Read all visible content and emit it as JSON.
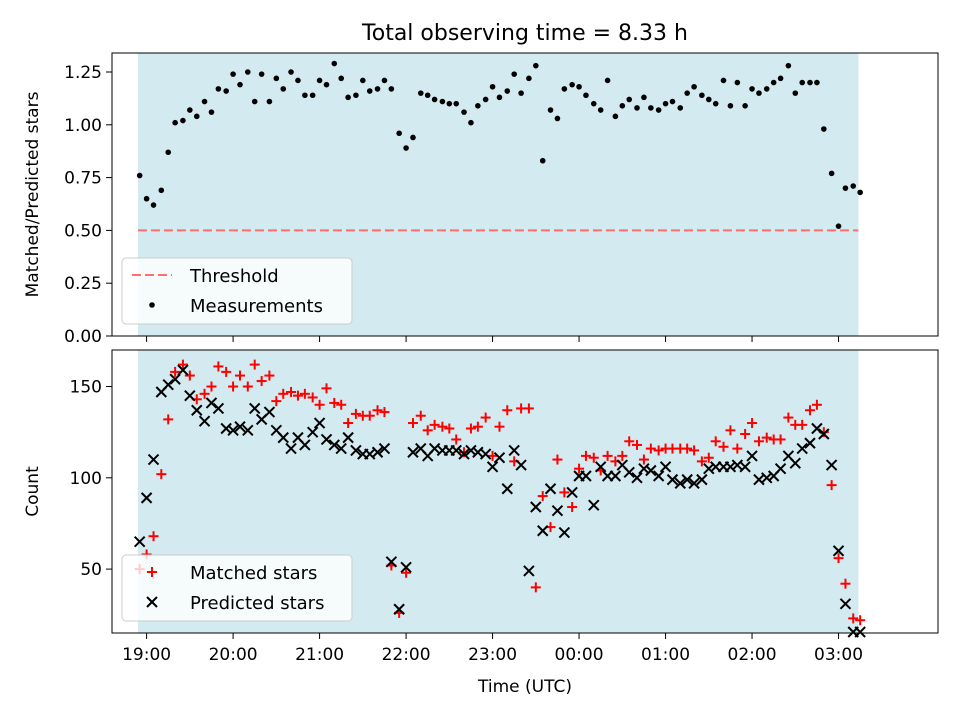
{
  "title": "Total observing time = 8.33 h",
  "colors": {
    "band": "#d3eaf0",
    "threshold": "#ff6e6e",
    "measurement": "#000000",
    "matched": "#ff0000",
    "predicted": "#000000"
  },
  "chart_data": [
    {
      "type": "scatter",
      "panel": "top",
      "ylabel": "Matched/Predicted stars",
      "ylim": [
        0,
        1.34
      ],
      "yticks": [
        0.0,
        0.25,
        0.5,
        0.75,
        1.0,
        1.25
      ],
      "ytick_labels": [
        "0.00",
        "0.25",
        "0.50",
        "0.75",
        "1.00",
        "1.25"
      ],
      "x_unit": "hours since 19:00 UTC",
      "xlim": [
        -0.4,
        9.15
      ],
      "observing_window": [
        -0.1,
        8.23
      ],
      "threshold": {
        "name": "Threshold",
        "value": 0.5,
        "style": "dashed"
      },
      "legend": [
        "Threshold",
        "Measurements"
      ],
      "legend_placement": "lower-left",
      "grid": false,
      "series": [
        {
          "name": "Measurements",
          "marker": "dot",
          "x": [
            -0.08,
            0.0,
            0.08,
            0.17,
            0.25,
            0.33,
            0.42,
            0.5,
            0.58,
            0.67,
            0.75,
            0.83,
            0.92,
            1.0,
            1.08,
            1.17,
            1.25,
            1.33,
            1.42,
            1.5,
            1.58,
            1.67,
            1.75,
            1.83,
            1.92,
            2.0,
            2.08,
            2.17,
            2.25,
            2.33,
            2.42,
            2.5,
            2.58,
            2.67,
            2.75,
            2.83,
            2.92,
            3.0,
            3.08,
            3.17,
            3.25,
            3.33,
            3.42,
            3.5,
            3.58,
            3.67,
            3.75,
            3.83,
            3.92,
            4.0,
            4.08,
            4.17,
            4.25,
            4.33,
            4.42,
            4.5,
            4.58,
            4.67,
            4.75,
            4.83,
            4.92,
            5.0,
            5.08,
            5.17,
            5.25,
            5.33,
            5.42,
            5.5,
            5.58,
            5.67,
            5.75,
            5.83,
            5.92,
            6.0,
            6.08,
            6.17,
            6.25,
            6.33,
            6.42,
            6.5,
            6.58,
            6.67,
            6.75,
            6.83,
            6.92,
            7.0,
            7.08,
            7.17,
            7.25,
            7.33,
            7.42,
            7.5,
            7.58,
            7.67,
            7.75,
            7.83,
            7.92,
            8.0,
            8.08,
            8.17,
            8.25
          ],
          "y": [
            0.76,
            0.65,
            0.62,
            0.69,
            0.87,
            1.01,
            1.02,
            1.07,
            1.04,
            1.11,
            1.06,
            1.17,
            1.16,
            1.24,
            1.19,
            1.25,
            1.11,
            1.24,
            1.11,
            1.22,
            1.17,
            1.25,
            1.21,
            1.14,
            1.14,
            1.21,
            1.19,
            1.29,
            1.22,
            1.13,
            1.14,
            1.21,
            1.16,
            1.17,
            1.21,
            1.17,
            0.96,
            0.89,
            0.94,
            1.15,
            1.14,
            1.12,
            1.11,
            1.1,
            1.1,
            1.06,
            1.01,
            1.09,
            1.12,
            1.18,
            1.13,
            1.16,
            1.24,
            1.15,
            1.22,
            1.28,
            0.83,
            1.07,
            1.03,
            1.17,
            1.19,
            1.18,
            1.14,
            1.1,
            1.07,
            1.21,
            1.04,
            1.09,
            1.12,
            1.08,
            1.13,
            1.08,
            1.07,
            1.1,
            1.11,
            1.08,
            1.15,
            1.18,
            1.14,
            1.12,
            1.1,
            1.21,
            1.09,
            1.2,
            1.09,
            1.17,
            1.15,
            1.17,
            1.2,
            1.22,
            1.28,
            1.15,
            1.2,
            1.2,
            1.2,
            0.98,
            0.77,
            0.52,
            0.7,
            0.71,
            0.68
          ]
        }
      ]
    },
    {
      "type": "scatter",
      "panel": "bottom",
      "xlabel": "Time (UTC)",
      "ylabel": "Count",
      "ylim": [
        15,
        170
      ],
      "yticks": [
        50,
        100,
        150
      ],
      "ytick_labels": [
        "50",
        "100",
        "150"
      ],
      "x_unit": "hours since 19:00 UTC",
      "xlim": [
        -0.4,
        9.15
      ],
      "xticks": [
        0,
        1,
        2,
        3,
        4,
        5,
        6,
        7,
        8
      ],
      "xtick_labels": [
        "19:00",
        "20:00",
        "21:00",
        "22:00",
        "23:00",
        "00:00",
        "01:00",
        "02:00",
        "03:00"
      ],
      "observing_window": [
        -0.1,
        8.23
      ],
      "legend": [
        "Matched stars",
        "Predicted stars"
      ],
      "legend_placement": "lower-left",
      "grid": false,
      "series": [
        {
          "name": "Matched stars",
          "marker": "plus",
          "x": [
            -0.08,
            0.0,
            0.08,
            0.17,
            0.25,
            0.33,
            0.42,
            0.5,
            0.58,
            0.67,
            0.75,
            0.83,
            0.92,
            1.0,
            1.08,
            1.17,
            1.25,
            1.33,
            1.42,
            1.5,
            1.58,
            1.67,
            1.75,
            1.83,
            1.92,
            2.0,
            2.08,
            2.17,
            2.25,
            2.33,
            2.42,
            2.5,
            2.58,
            2.67,
            2.75,
            2.83,
            2.92,
            3.0,
            3.08,
            3.17,
            3.25,
            3.33,
            3.42,
            3.5,
            3.58,
            3.67,
            3.75,
            3.83,
            3.92,
            4.0,
            4.08,
            4.17,
            4.25,
            4.33,
            4.42,
            4.5,
            4.58,
            4.67,
            4.75,
            4.83,
            4.92,
            5.0,
            5.08,
            5.17,
            5.25,
            5.33,
            5.42,
            5.5,
            5.58,
            5.67,
            5.75,
            5.83,
            5.92,
            6.0,
            6.08,
            6.17,
            6.25,
            6.33,
            6.42,
            6.5,
            6.58,
            6.67,
            6.75,
            6.83,
            6.92,
            7.0,
            7.08,
            7.17,
            7.25,
            7.33,
            7.42,
            7.5,
            7.58,
            7.67,
            7.75,
            7.83,
            7.92,
            8.0,
            8.08,
            8.17,
            8.25
          ],
          "y": [
            50,
            58,
            68,
            102,
            132,
            158,
            162,
            156,
            143,
            146,
            150,
            161,
            158,
            150,
            156,
            150,
            162,
            153,
            156,
            142,
            146,
            147,
            145,
            146,
            144,
            140,
            149,
            141,
            140,
            130,
            135,
            134,
            134,
            137,
            136,
            52,
            26,
            48,
            130,
            134,
            126,
            129,
            128,
            127,
            121,
            114,
            127,
            128,
            133,
            112,
            128,
            137,
            109,
            138,
            138,
            40,
            90,
            73,
            110,
            92,
            84,
            105,
            112,
            111,
            104,
            112,
            109,
            112,
            120,
            118,
            110,
            116,
            115,
            116,
            116,
            116,
            116,
            115,
            109,
            111,
            120,
            117,
            126,
            116,
            124,
            130,
            120,
            122,
            121,
            121,
            133,
            129,
            129,
            137,
            140,
            125,
            96,
            56,
            42,
            23,
            22
          ]
        },
        {
          "name": "Predicted stars",
          "marker": "x",
          "x": [
            -0.08,
            0.0,
            0.08,
            0.17,
            0.25,
            0.33,
            0.42,
            0.5,
            0.58,
            0.67,
            0.75,
            0.83,
            0.92,
            1.0,
            1.08,
            1.17,
            1.25,
            1.33,
            1.42,
            1.5,
            1.58,
            1.67,
            1.75,
            1.83,
            1.92,
            2.0,
            2.08,
            2.17,
            2.25,
            2.33,
            2.42,
            2.5,
            2.58,
            2.67,
            2.75,
            2.83,
            2.92,
            3.0,
            3.08,
            3.17,
            3.25,
            3.33,
            3.42,
            3.5,
            3.58,
            3.67,
            3.75,
            3.83,
            3.92,
            4.0,
            4.08,
            4.17,
            4.25,
            4.33,
            4.42,
            4.5,
            4.58,
            4.67,
            4.75,
            4.83,
            4.92,
            5.0,
            5.08,
            5.17,
            5.25,
            5.33,
            5.42,
            5.5,
            5.58,
            5.67,
            5.75,
            5.83,
            5.92,
            6.0,
            6.08,
            6.17,
            6.25,
            6.33,
            6.42,
            6.5,
            6.58,
            6.67,
            6.75,
            6.83,
            6.92,
            7.0,
            7.08,
            7.17,
            7.25,
            7.33,
            7.42,
            7.5,
            7.58,
            7.67,
            7.75,
            7.83,
            7.92,
            8.0,
            8.08,
            8.17,
            8.25
          ],
          "y": [
            65,
            89,
            110,
            147,
            151,
            154,
            159,
            145,
            137,
            131,
            141,
            138,
            127,
            126,
            128,
            126,
            138,
            132,
            136,
            126,
            122,
            116,
            122,
            118,
            125,
            130,
            121,
            118,
            116,
            122,
            115,
            113,
            113,
            114,
            116,
            54,
            28,
            51,
            114,
            116,
            112,
            116,
            115,
            115,
            115,
            113,
            115,
            114,
            113,
            106,
            111,
            94,
            115,
            107,
            49,
            84,
            71,
            94,
            82,
            70,
            92,
            101,
            101,
            85,
            106,
            101,
            101,
            107,
            103,
            100,
            105,
            104,
            101,
            106,
            99,
            97,
            99,
            97,
            99,
            105,
            106,
            106,
            106,
            107,
            106,
            112,
            99,
            100,
            101,
            105,
            112,
            108,
            116,
            119,
            127,
            124,
            107,
            60,
            31,
            15,
            14
          ]
        }
      ]
    }
  ]
}
